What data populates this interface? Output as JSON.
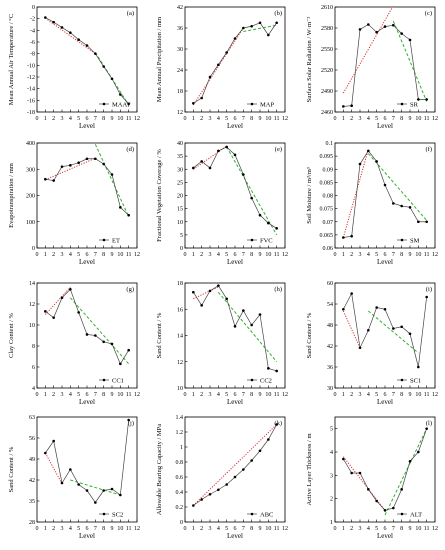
{
  "chart_data": [
    {
      "type": "line",
      "panel": "(a)",
      "ylabel": "Mean Annual Air Temperature / °C",
      "xlabel": "Level",
      "xlim": [
        0,
        12
      ],
      "ylim": [
        -18,
        0
      ],
      "yticks": [
        -18,
        -16,
        -14,
        -12,
        -10,
        -8,
        -6,
        -4,
        -2,
        0
      ],
      "xticks": [
        0,
        1,
        2,
        3,
        4,
        5,
        6,
        7,
        8,
        9,
        10,
        11,
        12
      ],
      "legend": "MAAT",
      "legend_position": "bottom-right",
      "x": [
        1,
        2,
        3,
        4,
        5,
        6,
        7,
        8,
        9,
        10,
        11
      ],
      "values": [
        -1.8,
        -2.6,
        -3.5,
        -4.4,
        -5.6,
        -6.6,
        -8.0,
        -10.2,
        -12.3,
        -15.0,
        -16.6
      ],
      "fits": [
        {
          "style": "dotted",
          "color": "#e03030",
          "points": [
            [
              1,
              -1.9
            ],
            [
              7,
              -8.0
            ]
          ]
        },
        {
          "style": "dashed",
          "color": "#30b030",
          "points": [
            [
              7,
              -7.8
            ],
            [
              11,
              -16.8
            ]
          ]
        }
      ]
    },
    {
      "type": "line",
      "panel": "(b)",
      "ylabel": "Mean Annual Precipitation / mm",
      "xlabel": "Level",
      "xlim": [
        0,
        12
      ],
      "ylim": [
        12,
        42
      ],
      "yticks": [
        12,
        18,
        24,
        30,
        36,
        42
      ],
      "xticks": [
        0,
        1,
        2,
        3,
        4,
        5,
        6,
        7,
        8,
        9,
        10,
        11,
        12
      ],
      "legend": "MAP",
      "legend_position": "bottom-right",
      "x": [
        1,
        2,
        3,
        4,
        5,
        6,
        7,
        8,
        9,
        10,
        11
      ],
      "values": [
        14.5,
        16.0,
        22.0,
        25.5,
        29.0,
        33.0,
        36.0,
        36.5,
        37.5,
        34.0,
        37.5
      ],
      "fits": [
        {
          "style": "dotted",
          "color": "#e03030",
          "points": [
            [
              1,
              14.0
            ],
            [
              7,
              36.0
            ]
          ]
        },
        {
          "style": "dashed",
          "color": "#30b030",
          "points": [
            [
              7,
              35.0
            ],
            [
              11,
              36.8
            ]
          ]
        }
      ]
    },
    {
      "type": "line",
      "panel": "(c)",
      "ylabel": "Surface Solar Radiation / W·m⁻²",
      "xlabel": "Level",
      "xlim": [
        0,
        12
      ],
      "ylim": [
        2460,
        2610
      ],
      "yticks": [
        2460,
        2490,
        2520,
        2550,
        2580,
        2610
      ],
      "xticks": [
        0,
        1,
        2,
        3,
        4,
        5,
        6,
        7,
        8,
        9,
        10,
        11,
        12
      ],
      "legend": "SR",
      "legend_position": "bottom-right",
      "x": [
        1,
        2,
        3,
        4,
        5,
        6,
        7,
        8,
        9,
        10,
        11
      ],
      "values": [
        2468,
        2469,
        2578,
        2585,
        2574,
        2582,
        2584,
        2572,
        2563,
        2478,
        2478
      ],
      "fits": [
        {
          "style": "dotted",
          "color": "#e03030",
          "points": [
            [
              1,
              2487
            ],
            [
              7,
              2612
            ]
          ]
        },
        {
          "style": "dashed",
          "color": "#30b030",
          "points": [
            [
              7,
              2590
            ],
            [
              11,
              2475
            ]
          ]
        }
      ]
    },
    {
      "type": "line",
      "panel": "(d)",
      "ylabel": "Evapotranspiration / mm",
      "xlabel": "Level",
      "xlim": [
        0,
        12
      ],
      "ylim": [
        0,
        400
      ],
      "yticks": [
        0,
        100,
        200,
        300,
        400
      ],
      "xticks": [
        0,
        1,
        2,
        3,
        4,
        5,
        6,
        7,
        8,
        9,
        10,
        11,
        12
      ],
      "legend": "ET",
      "legend_position": "bottom-right",
      "x": [
        1,
        2,
        3,
        4,
        5,
        6,
        7,
        8,
        9,
        10,
        11
      ],
      "values": [
        262,
        257,
        310,
        315,
        325,
        340,
        340,
        320,
        280,
        155,
        125
      ],
      "fits": [
        {
          "style": "dotted",
          "color": "#e03030",
          "points": [
            [
              1,
              260
            ],
            [
              7,
              342
            ]
          ]
        },
        {
          "style": "dashed",
          "color": "#30b030",
          "points": [
            [
              7,
              395
            ],
            [
              11,
              120
            ]
          ]
        }
      ]
    },
    {
      "type": "line",
      "panel": "(e)",
      "ylabel": "Fractional Vegetation Coverage / %",
      "xlabel": "Level",
      "xlim": [
        0,
        12
      ],
      "ylim": [
        0,
        40
      ],
      "yticks": [
        0,
        5,
        10,
        15,
        20,
        25,
        30,
        35,
        40
      ],
      "xticks": [
        0,
        1,
        2,
        3,
        4,
        5,
        6,
        7,
        8,
        9,
        10,
        11,
        12
      ],
      "legend": "FVC",
      "legend_position": "bottom-right",
      "x": [
        1,
        2,
        3,
        4,
        5,
        6,
        7,
        8,
        9,
        10,
        11
      ],
      "values": [
        30.5,
        33.0,
        30.5,
        37.0,
        38.5,
        35.5,
        28.0,
        19.0,
        12.5,
        9.5,
        7.5
      ],
      "fits": [
        {
          "style": "dotted",
          "color": "#e03030",
          "points": [
            [
              1,
              30.0
            ],
            [
              5,
              38.8
            ]
          ]
        },
        {
          "style": "dashed",
          "color": "#30b030",
          "points": [
            [
              5,
              38.5
            ],
            [
              11,
              5.0
            ]
          ]
        }
      ]
    },
    {
      "type": "line",
      "panel": "(f)",
      "ylabel": "Soil Moisture / m³/m³",
      "xlabel": "Level",
      "xlim": [
        0,
        12
      ],
      "ylim": [
        0.06,
        0.1
      ],
      "yticks": [
        0.06,
        0.065,
        0.07,
        0.075,
        0.08,
        0.085,
        0.09,
        0.095,
        0.1
      ],
      "xticks": [
        0,
        1,
        2,
        3,
        4,
        5,
        6,
        7,
        8,
        9,
        10,
        11,
        12
      ],
      "legend": "SM",
      "legend_position": "bottom-right",
      "x": [
        1,
        2,
        3,
        4,
        5,
        6,
        7,
        8,
        9,
        10,
        11
      ],
      "values": [
        0.064,
        0.0645,
        0.092,
        0.097,
        0.093,
        0.084,
        0.077,
        0.076,
        0.0755,
        0.07,
        0.07
      ],
      "fits": [
        {
          "style": "dotted",
          "color": "#e03030",
          "points": [
            [
              1,
              0.064
            ],
            [
              4,
              0.0975
            ]
          ]
        },
        {
          "style": "dashed",
          "color": "#30b030",
          "points": [
            [
              4,
              0.096
            ],
            [
              11,
              0.0705
            ]
          ]
        }
      ]
    },
    {
      "type": "line",
      "panel": "(g)",
      "ylabel": "Clay Content / %",
      "xlabel": "Level",
      "xlim": [
        0,
        12
      ],
      "ylim": [
        4,
        14
      ],
      "yticks": [
        4,
        6,
        8,
        10,
        12,
        14
      ],
      "xticks": [
        0,
        1,
        2,
        3,
        4,
        5,
        6,
        7,
        8,
        9,
        10,
        11,
        12
      ],
      "legend": "CC1",
      "legend_position": "bottom-right",
      "x": [
        1,
        2,
        3,
        4,
        5,
        6,
        7,
        8,
        9,
        10,
        11
      ],
      "values": [
        11.3,
        10.7,
        12.6,
        13.4,
        11.2,
        9.1,
        9.0,
        8.4,
        8.2,
        6.3,
        7.6
      ],
      "fits": [
        {
          "style": "dotted",
          "color": "#e03030",
          "points": [
            [
              1,
              11.0
            ],
            [
              4,
              13.6
            ]
          ]
        },
        {
          "style": "dashed",
          "color": "#30b030",
          "points": [
            [
              4,
              12.6
            ],
            [
              11,
              6.3
            ]
          ]
        }
      ]
    },
    {
      "type": "line",
      "panel": "(h)",
      "ylabel": "Sand Content / %",
      "xlabel": "Level",
      "xlim": [
        0,
        12
      ],
      "ylim": [
        10,
        18
      ],
      "yticks": [
        10,
        12,
        14,
        16,
        18
      ],
      "xticks": [
        0,
        1,
        2,
        3,
        4,
        5,
        6,
        7,
        8,
        9,
        10,
        11,
        12
      ],
      "legend": "CC2",
      "legend_position": "bottom-right",
      "x": [
        1,
        2,
        3,
        4,
        5,
        6,
        7,
        8,
        9,
        10,
        11
      ],
      "values": [
        17.3,
        16.3,
        17.4,
        17.8,
        16.8,
        14.7,
        15.9,
        14.8,
        15.6,
        11.5,
        11.3
      ],
      "fits": [
        {
          "style": "dotted",
          "color": "#e03030",
          "points": [
            [
              1,
              16.8
            ],
            [
              4,
              17.7
            ]
          ]
        },
        {
          "style": "dashed",
          "color": "#30b030",
          "points": [
            [
              4,
              17.3
            ],
            [
              11,
              12.0
            ]
          ]
        }
      ]
    },
    {
      "type": "line",
      "panel": "(i)",
      "ylabel": "Sand Content / %",
      "xlabel": "Level",
      "xlim": [
        0,
        12
      ],
      "ylim": [
        30,
        60
      ],
      "yticks": [
        30,
        36,
        42,
        48,
        54,
        60
      ],
      "xticks": [
        0,
        1,
        2,
        3,
        4,
        5,
        6,
        7,
        8,
        9,
        10,
        11,
        12
      ],
      "legend": "SC1",
      "legend_position": "bottom-right",
      "x": [
        1,
        2,
        3,
        4,
        5,
        6,
        7,
        8,
        9,
        10,
        11
      ],
      "values": [
        52.5,
        57.0,
        41.5,
        46.5,
        53.0,
        52.5,
        47.0,
        47.5,
        45.5,
        36.0,
        56.0
      ],
      "fits": [
        {
          "style": "dotted",
          "color": "#e03030",
          "points": [
            [
              1,
              52.0
            ],
            [
              3,
              41.5
            ]
          ]
        },
        {
          "style": "dashed",
          "color": "#30b030",
          "points": [
            [
              4,
              52.0
            ],
            [
              10,
              40.0
            ]
          ]
        }
      ]
    },
    {
      "type": "line",
      "panel": "(j)",
      "ylabel": "Sand Content / %",
      "xlabel": "Level",
      "xlim": [
        0,
        12
      ],
      "ylim": [
        28,
        63
      ],
      "yticks": [
        28,
        35,
        42,
        49,
        56,
        63
      ],
      "xticks": [
        0,
        1,
        2,
        3,
        4,
        5,
        6,
        7,
        8,
        9,
        10,
        11,
        12
      ],
      "legend": "SC2",
      "legend_position": "bottom-right",
      "x": [
        1,
        2,
        3,
        4,
        5,
        6,
        7,
        8,
        9,
        10,
        11
      ],
      "values": [
        51.0,
        55.0,
        41.0,
        45.5,
        40.5,
        38.5,
        34.5,
        38.5,
        39.0,
        37.0,
        62.0
      ],
      "fits": [
        {
          "style": "dotted",
          "color": "#e03030",
          "points": [
            [
              1,
              51.0
            ],
            [
              3,
              40.8
            ]
          ]
        },
        {
          "style": "dashed",
          "color": "#30b030",
          "points": [
            [
              4,
              42.0
            ],
            [
              10,
              37.0
            ]
          ]
        }
      ]
    },
    {
      "type": "line",
      "panel": "(k)",
      "ylabel": "Allowable Bearing Capacity / MPa",
      "xlabel": "Level",
      "xlim": [
        0,
        12
      ],
      "ylim": [
        0.0,
        1.4
      ],
      "yticks": [
        0.0,
        0.2,
        0.4,
        0.6,
        0.8,
        1.0,
        1.2,
        1.4
      ],
      "xticks": [
        0,
        1,
        2,
        3,
        4,
        5,
        6,
        7,
        8,
        9,
        10,
        11,
        12
      ],
      "legend": "ABC",
      "legend_position": "bottom-right",
      "x": [
        1,
        2,
        3,
        4,
        5,
        6,
        7,
        8,
        9,
        10,
        11
      ],
      "values": [
        0.22,
        0.3,
        0.37,
        0.43,
        0.5,
        0.6,
        0.7,
        0.82,
        0.95,
        1.1,
        1.3
      ],
      "fits": [
        {
          "style": "dotted",
          "color": "#e03030",
          "points": [
            [
              1,
              0.22
            ],
            [
              11,
              1.3
            ]
          ]
        }
      ]
    },
    {
      "type": "line",
      "panel": "(l)",
      "ylabel": "Active Layer Thickness / m",
      "xlabel": "Level",
      "xlim": [
        0,
        12
      ],
      "ylim": [
        1,
        5.5
      ],
      "yticks": [
        1,
        2,
        3,
        4,
        5
      ],
      "xticks": [
        0,
        1,
        2,
        3,
        4,
        5,
        6,
        7,
        8,
        9,
        10,
        11,
        12
      ],
      "legend": "ALT",
      "legend_position": "bottom-right",
      "x": [
        1,
        2,
        3,
        4,
        5,
        6,
        7,
        8,
        9,
        10,
        11
      ],
      "values": [
        3.7,
        3.1,
        3.1,
        2.4,
        1.9,
        1.5,
        1.6,
        2.4,
        3.6,
        4.0,
        5.0
      ],
      "fits": [
        {
          "style": "dotted",
          "color": "#e03030",
          "points": [
            [
              1,
              3.8
            ],
            [
              6,
              1.5
            ]
          ]
        },
        {
          "style": "dashed",
          "color": "#30b030",
          "points": [
            [
              6,
              1.3
            ],
            [
              11,
              5.0
            ]
          ]
        }
      ]
    }
  ]
}
